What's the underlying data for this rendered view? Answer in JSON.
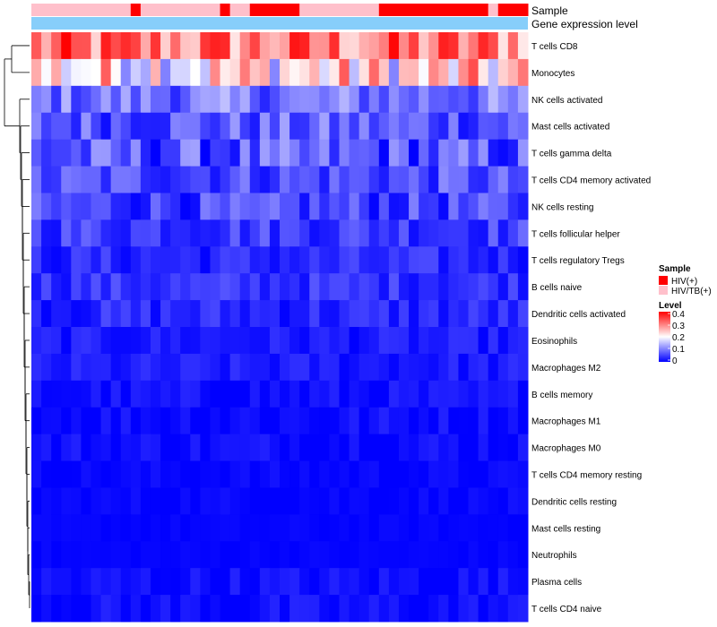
{
  "chart_data": {
    "type": "heatmap",
    "title": "",
    "n_samples": 50,
    "annotation_tracks": {
      "sample_label": "Sample",
      "expression_label": "Gene expression level",
      "expression_color": "#87cefa"
    },
    "sample_groups": [
      "HIV/TB(+)",
      "HIV/TB(+)",
      "HIV/TB(+)",
      "HIV/TB(+)",
      "HIV/TB(+)",
      "HIV/TB(+)",
      "HIV/TB(+)",
      "HIV/TB(+)",
      "HIV/TB(+)",
      "HIV/TB(+)",
      "HIV(+)",
      "HIV/TB(+)",
      "HIV/TB(+)",
      "HIV/TB(+)",
      "HIV/TB(+)",
      "HIV/TB(+)",
      "HIV/TB(+)",
      "HIV/TB(+)",
      "HIV/TB(+)",
      "HIV(+)",
      "HIV/TB(+)",
      "HIV/TB(+)",
      "HIV(+)",
      "HIV(+)",
      "HIV(+)",
      "HIV(+)",
      "HIV(+)",
      "HIV/TB(+)",
      "HIV/TB(+)",
      "HIV/TB(+)",
      "HIV/TB(+)",
      "HIV/TB(+)",
      "HIV/TB(+)",
      "HIV/TB(+)",
      "HIV/TB(+)",
      "HIV(+)",
      "HIV(+)",
      "HIV(+)",
      "HIV(+)",
      "HIV(+)",
      "HIV(+)",
      "HIV(+)",
      "HIV(+)",
      "HIV(+)",
      "HIV(+)",
      "HIV(+)",
      "HIV/TB(+)",
      "HIV(+)",
      "HIV(+)",
      "HIV(+)"
    ],
    "rows": [
      "T cells CD8",
      "Monocytes",
      "NK cells activated",
      "Mast cells activated",
      "T cells gamma delta",
      "T cells CD4 memory activated",
      "NK cells resting",
      "T cells follicular helper",
      "T cells regulatory  Tregs",
      "B cells naive",
      "Dendritic cells activated",
      "Eosinophils",
      "Macrophages M2",
      "B cells memory",
      "Macrophages M1",
      "Macrophages M0",
      "T cells CD4 memory resting",
      "Dendritic cells resting",
      "Mast cells resting",
      "Neutrophils",
      "Plasma cells",
      "T cells CD4 naive"
    ],
    "row_base_values": [
      0.3,
      0.22,
      0.09,
      0.07,
      0.06,
      0.06,
      0.05,
      0.05,
      0.03,
      0.04,
      0.03,
      0.02,
      0.02,
      0.01,
      0.01,
      0.01,
      0.005,
      0.005,
      0.003,
      0.003,
      0.01,
      0.01
    ],
    "row_variation": [
      0.1,
      0.12,
      0.06,
      0.06,
      0.07,
      0.05,
      0.05,
      0.04,
      0.03,
      0.03,
      0.03,
      0.02,
      0.02,
      0.02,
      0.02,
      0.02,
      0.01,
      0.01,
      0.005,
      0.005,
      0.02,
      0.02
    ],
    "legend": {
      "sample_title": "Sample",
      "groups": [
        {
          "name": "HIV(+)",
          "color": "#ff0000"
        },
        {
          "name": "HIV/TB(+)",
          "color": "#ffc0cb"
        }
      ],
      "level_title": "Level",
      "level_ticks": [
        "0.4",
        "0.3",
        "0.2",
        "0.1",
        "0"
      ],
      "scale": {
        "min": 0,
        "mid": 0.2,
        "max": 0.4,
        "low_color": "#0000ff",
        "mid_color": "#ffffff",
        "high_color": "#ff0000"
      }
    }
  }
}
